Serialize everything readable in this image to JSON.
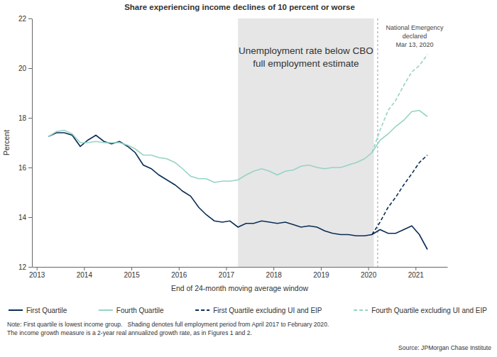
{
  "chart_data": {
    "type": "line",
    "title": "Share experiencing income declines of 10 percent or worse",
    "x_label": "End of 24-month moving average window",
    "y_label": "Percent",
    "x": [
      2013.25,
      2013.42,
      2013.58,
      2013.75,
      2013.92,
      2014.08,
      2014.25,
      2014.42,
      2014.58,
      2014.75,
      2014.92,
      2015.08,
      2015.25,
      2015.42,
      2015.58,
      2015.75,
      2015.92,
      2016.08,
      2016.25,
      2016.42,
      2016.58,
      2016.75,
      2016.92,
      2017.08,
      2017.25,
      2017.42,
      2017.58,
      2017.75,
      2017.92,
      2018.08,
      2018.25,
      2018.42,
      2018.58,
      2018.75,
      2018.92,
      2019.08,
      2019.25,
      2019.42,
      2019.58,
      2019.75,
      2019.92,
      2020.08,
      2020.25,
      2020.42,
      2020.58,
      2020.75,
      2020.92,
      2021.08,
      2021.25
    ],
    "xlim": [
      2012.9,
      2021.67
    ],
    "xticks": [
      2013,
      2014,
      2015,
      2016,
      2017,
      2018,
      2019,
      2020,
      2021
    ],
    "ylim": [
      12,
      22
    ],
    "yticks": [
      12,
      14,
      16,
      18,
      20,
      22
    ],
    "grid": false,
    "legend": "bottom",
    "series": [
      {
        "name": "First Quartile",
        "color": "#0b2d55",
        "line_style": "solid",
        "values": [
          17.25,
          17.4,
          17.4,
          17.3,
          16.85,
          17.1,
          17.3,
          17.05,
          16.95,
          17.05,
          16.85,
          16.6,
          16.1,
          15.95,
          15.7,
          15.5,
          15.3,
          15.05,
          14.85,
          14.4,
          14.1,
          13.85,
          13.8,
          13.85,
          13.6,
          13.75,
          13.75,
          13.85,
          13.8,
          13.75,
          13.8,
          13.7,
          13.6,
          13.65,
          13.6,
          13.45,
          13.35,
          13.3,
          13.3,
          13.25,
          13.25,
          13.3,
          13.5,
          13.35,
          13.35,
          13.5,
          13.65,
          13.3,
          12.7
        ]
      },
      {
        "name": "Fourth Quartile",
        "color": "#96d3c5",
        "line_style": "solid",
        "values": [
          17.25,
          17.45,
          17.5,
          17.35,
          17.0,
          17.0,
          17.05,
          17.0,
          17.0,
          17.0,
          16.9,
          16.75,
          16.5,
          16.5,
          16.4,
          16.35,
          16.2,
          15.95,
          15.65,
          15.55,
          15.55,
          15.4,
          15.45,
          15.45,
          15.5,
          15.7,
          15.85,
          15.95,
          15.85,
          15.7,
          15.85,
          15.9,
          16.05,
          16.1,
          16.0,
          15.95,
          16.0,
          16.0,
          16.1,
          16.2,
          16.35,
          16.6,
          17.1,
          17.35,
          17.65,
          17.9,
          18.25,
          18.3,
          18.05
        ]
      },
      {
        "name": "First Quartile excluding UI and EIP",
        "color": "#0b2d55",
        "line_style": "dashed",
        "values": [
          null,
          null,
          null,
          null,
          null,
          null,
          null,
          null,
          null,
          null,
          null,
          null,
          null,
          null,
          null,
          null,
          null,
          null,
          null,
          null,
          null,
          null,
          null,
          null,
          null,
          null,
          null,
          null,
          null,
          null,
          null,
          null,
          null,
          null,
          null,
          null,
          null,
          null,
          null,
          null,
          null,
          13.3,
          13.8,
          14.4,
          14.8,
          15.3,
          15.75,
          16.2,
          16.5
        ]
      },
      {
        "name": "Fourth Quartile excluding UI and EIP",
        "color": "#96d3c5",
        "line_style": "dashed",
        "values": [
          null,
          null,
          null,
          null,
          null,
          null,
          null,
          null,
          null,
          null,
          null,
          null,
          null,
          null,
          null,
          null,
          null,
          null,
          null,
          null,
          null,
          null,
          null,
          null,
          null,
          null,
          null,
          null,
          null,
          null,
          null,
          null,
          null,
          null,
          null,
          null,
          null,
          null,
          null,
          null,
          null,
          16.6,
          17.5,
          18.3,
          18.7,
          19.3,
          19.85,
          20.1,
          20.55
        ]
      }
    ],
    "shaded_region": {
      "x": [
        2017.25,
        2020.12
      ],
      "text": [
        "Unemployment rate below CBO",
        "full employment estimate"
      ]
    },
    "event_line": {
      "x": 2020.2,
      "text": [
        "National Emergency",
        "declared",
        "Mar 13, 2020"
      ]
    },
    "note": [
      "Note: First quartile is lowest income group.   Shading denotes full employment period from April 2017 to February 2020.",
      "The income growth measure is a 2-year real annualized growth rate, as in Figures 1 and 2."
    ],
    "source": "Source: JPMorgan Chase Institute"
  }
}
